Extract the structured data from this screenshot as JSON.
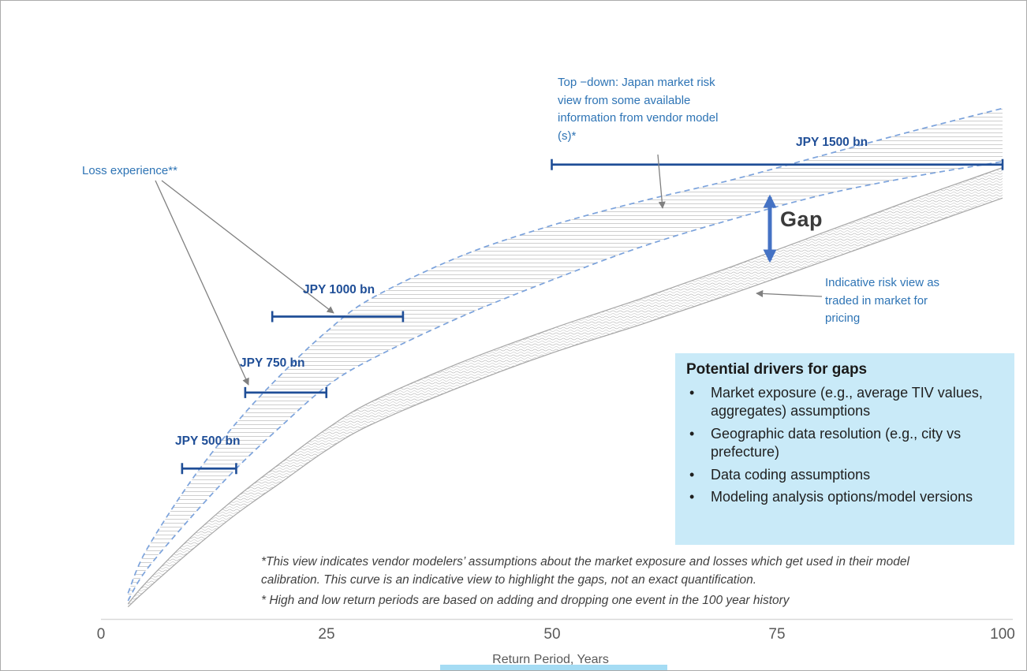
{
  "chart_data": {
    "type": "area",
    "title": "",
    "xlabel": "Return Period, Years",
    "ylabel": "",
    "y_unit": "JPY bn",
    "xlim": [
      0,
      100
    ],
    "ylim": [
      0,
      1750
    ],
    "grid": false,
    "legend_position": "none",
    "x_ticks": [
      "0",
      "25",
      "50",
      "75",
      "100"
    ],
    "x": [
      3,
      5,
      10,
      15,
      20,
      25,
      30,
      40,
      50,
      60,
      70,
      80,
      90,
      100
    ],
    "series": [
      {
        "name": "top-down-vendor-view-upper",
        "style": "dashed-blue",
        "values": [
          90,
          230,
          460,
          650,
          810,
          950,
          1060,
          1200,
          1300,
          1380,
          1450,
          1530,
          1610,
          1685
        ]
      },
      {
        "name": "top-down-vendor-view-lower",
        "style": "dashed-blue",
        "values": [
          65,
          165,
          340,
          500,
          640,
          770,
          860,
          1000,
          1120,
          1230,
          1320,
          1400,
          1460,
          1510
        ]
      },
      {
        "name": "market-pricing-view-upper",
        "style": "solid-gray",
        "values": [
          55,
          125,
          275,
          405,
          520,
          630,
          720,
          850,
          960,
          1060,
          1165,
          1275,
          1385,
          1490
        ]
      },
      {
        "name": "market-pricing-view-lower",
        "style": "solid-gray",
        "values": [
          45,
          100,
          230,
          350,
          455,
          560,
          645,
          770,
          880,
          975,
          1075,
          1180,
          1285,
          1390
        ]
      }
    ],
    "loss_markers": [
      {
        "label": "JPY 500 bn",
        "loss_bn": 500,
        "return_period_range": [
          9,
          15
        ]
      },
      {
        "label": "JPY 750 bn",
        "loss_bn": 750,
        "return_period_range": [
          16,
          25
        ]
      },
      {
        "label": "JPY 1000 bn",
        "loss_bn": 1000,
        "return_period_range": [
          19,
          33.5
        ]
      },
      {
        "label": "JPY 1500 bn",
        "loss_bn": 1500,
        "return_period_range": [
          50,
          100
        ]
      }
    ]
  },
  "annotations": {
    "loss_experience": "Loss experience**",
    "top_down": "Top −down: Japan market risk view from some available information from vendor model (s)*",
    "gap": "Gap",
    "indicative": "Indicative risk view as traded in market for pricing"
  },
  "drivers_box": {
    "title": "Potential drivers for gaps",
    "items": [
      "Market exposure (e.g., average TIV values, aggregates) assumptions",
      "Geographic data resolution (e.g., city vs prefecture)",
      "Data coding assumptions",
      "Modeling analysis options/model versions"
    ]
  },
  "footnotes": {
    "note1": "*This view indicates vendor modelers’ assumptions about the market exposure and losses which get used in their model calibration. This curve is an indicative view to highlight the gaps, not an exact quantification.",
    "note2": "* High and low return periods are based on adding and dropping one event in the 100 year history"
  },
  "axis": {
    "xlabel": "Return Period, Years"
  },
  "colors": {
    "annotation_blue": "#2E74B5",
    "jpy_label_blue": "#1F4E97",
    "error_bar_blue": "#1F4E97",
    "dashed_curve_blue": "#7CA3DC",
    "market_curve_gray": "#A6A6A6",
    "gap_arrow_blue": "#4472C4",
    "drivers_box_bg": "#C9EAF8",
    "footnote_gray": "#404040",
    "axis_gray": "#595959",
    "bottom_strip_blue": "#A5DCF4"
  }
}
